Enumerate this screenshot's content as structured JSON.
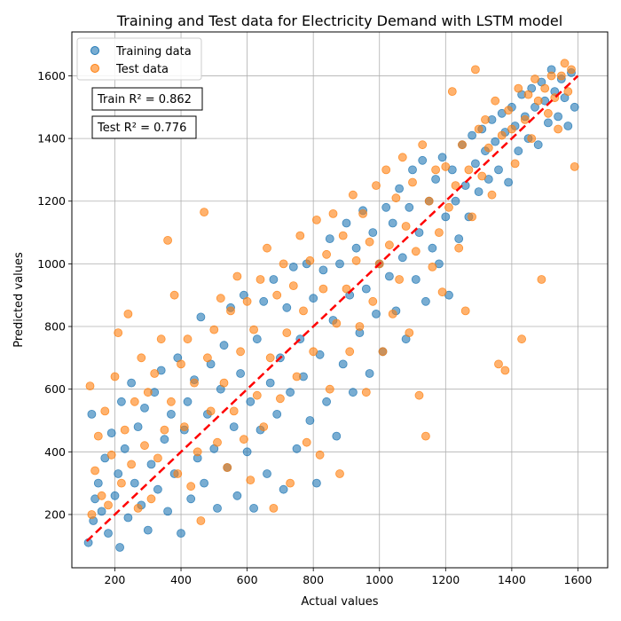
{
  "chart_data": {
    "type": "scatter",
    "title": "Training and Test data for Electricity Demand with LSTM model",
    "xlabel": "Actual values",
    "ylabel": "Predicted values",
    "xlim": [
      70,
      1690
    ],
    "ylim": [
      30,
      1740
    ],
    "xticks": [
      200,
      400,
      600,
      800,
      1000,
      1200,
      1400,
      1600
    ],
    "yticks": [
      200,
      400,
      600,
      800,
      1000,
      1200,
      1400,
      1600
    ],
    "grid": true,
    "legend_position": "top-left",
    "annotations": [
      "Train R² = 0.862",
      "Test R² = 0.776"
    ],
    "reference_line": {
      "style": "dashed",
      "color": "#ff0000",
      "from": [
        115,
        115
      ],
      "to": [
        1600,
        1600
      ]
    },
    "series": [
      {
        "name": "Training data",
        "color": "#1f77b4",
        "points": [
          [
            120,
            110
          ],
          [
            130,
            520
          ],
          [
            135,
            180
          ],
          [
            140,
            250
          ],
          [
            150,
            300
          ],
          [
            160,
            210
          ],
          [
            170,
            380
          ],
          [
            180,
            140
          ],
          [
            190,
            460
          ],
          [
            200,
            260
          ],
          [
            210,
            330
          ],
          [
            215,
            95
          ],
          [
            220,
            560
          ],
          [
            230,
            410
          ],
          [
            240,
            190
          ],
          [
            250,
            620
          ],
          [
            260,
            300
          ],
          [
            270,
            480
          ],
          [
            280,
            230
          ],
          [
            290,
            540
          ],
          [
            300,
            150
          ],
          [
            310,
            360
          ],
          [
            320,
            590
          ],
          [
            330,
            280
          ],
          [
            340,
            660
          ],
          [
            350,
            440
          ],
          [
            360,
            210
          ],
          [
            370,
            520
          ],
          [
            380,
            330
          ],
          [
            390,
            700
          ],
          [
            400,
            140
          ],
          [
            410,
            470
          ],
          [
            420,
            560
          ],
          [
            430,
            250
          ],
          [
            440,
            630
          ],
          [
            450,
            380
          ],
          [
            460,
            830
          ],
          [
            470,
            300
          ],
          [
            480,
            520
          ],
          [
            490,
            680
          ],
          [
            500,
            410
          ],
          [
            510,
            220
          ],
          [
            520,
            600
          ],
          [
            530,
            740
          ],
          [
            540,
            350
          ],
          [
            550,
            860
          ],
          [
            560,
            480
          ],
          [
            570,
            260
          ],
          [
            580,
            650
          ],
          [
            590,
            900
          ],
          [
            600,
            400
          ],
          [
            610,
            560
          ],
          [
            620,
            220
          ],
          [
            630,
            760
          ],
          [
            640,
            470
          ],
          [
            650,
            880
          ],
          [
            660,
            330
          ],
          [
            670,
            620
          ],
          [
            680,
            950
          ],
          [
            690,
            520
          ],
          [
            700,
            700
          ],
          [
            710,
            280
          ],
          [
            720,
            860
          ],
          [
            730,
            590
          ],
          [
            740,
            990
          ],
          [
            750,
            410
          ],
          [
            760,
            760
          ],
          [
            770,
            640
          ],
          [
            780,
            1000
          ],
          [
            790,
            500
          ],
          [
            800,
            890
          ],
          [
            810,
            300
          ],
          [
            820,
            710
          ],
          [
            830,
            980
          ],
          [
            840,
            560
          ],
          [
            850,
            1080
          ],
          [
            860,
            820
          ],
          [
            870,
            450
          ],
          [
            880,
            1000
          ],
          [
            890,
            680
          ],
          [
            900,
            1130
          ],
          [
            910,
            900
          ],
          [
            920,
            590
          ],
          [
            930,
            1050
          ],
          [
            940,
            780
          ],
          [
            950,
            1170
          ],
          [
            960,
            920
          ],
          [
            970,
            650
          ],
          [
            980,
            1100
          ],
          [
            990,
            840
          ],
          [
            1000,
            1000
          ],
          [
            1010,
            720
          ],
          [
            1020,
            1180
          ],
          [
            1030,
            960
          ],
          [
            1040,
            1130
          ],
          [
            1050,
            850
          ],
          [
            1060,
            1240
          ],
          [
            1070,
            1020
          ],
          [
            1080,
            760
          ],
          [
            1090,
            1180
          ],
          [
            1100,
            1300
          ],
          [
            1110,
            950
          ],
          [
            1120,
            1100
          ],
          [
            1130,
            1330
          ],
          [
            1140,
            880
          ],
          [
            1150,
            1200
          ],
          [
            1160,
            1050
          ],
          [
            1170,
            1270
          ],
          [
            1180,
            1000
          ],
          [
            1190,
            1340
          ],
          [
            1200,
            1150
          ],
          [
            1210,
            900
          ],
          [
            1220,
            1300
          ],
          [
            1230,
            1200
          ],
          [
            1240,
            1080
          ],
          [
            1250,
            1380
          ],
          [
            1260,
            1250
          ],
          [
            1270,
            1150
          ],
          [
            1280,
            1410
          ],
          [
            1290,
            1320
          ],
          [
            1300,
            1230
          ],
          [
            1310,
            1430
          ],
          [
            1320,
            1360
          ],
          [
            1330,
            1270
          ],
          [
            1340,
            1460
          ],
          [
            1350,
            1390
          ],
          [
            1360,
            1300
          ],
          [
            1370,
            1480
          ],
          [
            1380,
            1420
          ],
          [
            1390,
            1260
          ],
          [
            1400,
            1500
          ],
          [
            1410,
            1440
          ],
          [
            1420,
            1360
          ],
          [
            1430,
            1540
          ],
          [
            1440,
            1470
          ],
          [
            1450,
            1400
          ],
          [
            1460,
            1560
          ],
          [
            1470,
            1500
          ],
          [
            1480,
            1380
          ],
          [
            1490,
            1580
          ],
          [
            1500,
            1520
          ],
          [
            1510,
            1450
          ],
          [
            1520,
            1620
          ],
          [
            1530,
            1550
          ],
          [
            1540,
            1470
          ],
          [
            1550,
            1590
          ],
          [
            1560,
            1530
          ],
          [
            1570,
            1440
          ],
          [
            1580,
            1610
          ],
          [
            1590,
            1500
          ]
        ]
      },
      {
        "name": "Test data",
        "color": "#ff7f0e",
        "points": [
          [
            125,
            610
          ],
          [
            130,
            200
          ],
          [
            140,
            340
          ],
          [
            150,
            450
          ],
          [
            160,
            260
          ],
          [
            170,
            530
          ],
          [
            180,
            230
          ],
          [
            190,
            390
          ],
          [
            200,
            640
          ],
          [
            210,
            780
          ],
          [
            220,
            300
          ],
          [
            230,
            470
          ],
          [
            240,
            840
          ],
          [
            250,
            360
          ],
          [
            260,
            560
          ],
          [
            270,
            220
          ],
          [
            280,
            700
          ],
          [
            290,
            420
          ],
          [
            300,
            590
          ],
          [
            310,
            250
          ],
          [
            320,
            650
          ],
          [
            330,
            380
          ],
          [
            340,
            760
          ],
          [
            350,
            470
          ],
          [
            360,
            1075
          ],
          [
            370,
            560
          ],
          [
            380,
            900
          ],
          [
            390,
            330
          ],
          [
            400,
            680
          ],
          [
            410,
            480
          ],
          [
            420,
            760
          ],
          [
            430,
            290
          ],
          [
            440,
            620
          ],
          [
            450,
            400
          ],
          [
            460,
            180
          ],
          [
            470,
            1165
          ],
          [
            480,
            700
          ],
          [
            490,
            530
          ],
          [
            500,
            790
          ],
          [
            510,
            430
          ],
          [
            520,
            890
          ],
          [
            530,
            620
          ],
          [
            540,
            350
          ],
          [
            550,
            850
          ],
          [
            560,
            530
          ],
          [
            570,
            960
          ],
          [
            580,
            720
          ],
          [
            590,
            440
          ],
          [
            600,
            880
          ],
          [
            610,
            310
          ],
          [
            620,
            790
          ],
          [
            630,
            580
          ],
          [
            640,
            950
          ],
          [
            650,
            480
          ],
          [
            660,
            1050
          ],
          [
            670,
            700
          ],
          [
            680,
            220
          ],
          [
            690,
            900
          ],
          [
            700,
            570
          ],
          [
            710,
            1000
          ],
          [
            720,
            780
          ],
          [
            730,
            300
          ],
          [
            740,
            930
          ],
          [
            750,
            640
          ],
          [
            760,
            1090
          ],
          [
            770,
            850
          ],
          [
            780,
            430
          ],
          [
            790,
            1010
          ],
          [
            800,
            720
          ],
          [
            810,
            1140
          ],
          [
            820,
            390
          ],
          [
            830,
            920
          ],
          [
            840,
            1030
          ],
          [
            850,
            600
          ],
          [
            860,
            1160
          ],
          [
            870,
            810
          ],
          [
            880,
            330
          ],
          [
            890,
            1090
          ],
          [
            900,
            920
          ],
          [
            910,
            720
          ],
          [
            920,
            1220
          ],
          [
            930,
            1010
          ],
          [
            940,
            800
          ],
          [
            950,
            1160
          ],
          [
            960,
            590
          ],
          [
            970,
            1070
          ],
          [
            980,
            880
          ],
          [
            990,
            1250
          ],
          [
            1000,
            1000
          ],
          [
            1010,
            720
          ],
          [
            1020,
            1300
          ],
          [
            1030,
            1060
          ],
          [
            1040,
            840
          ],
          [
            1050,
            1210
          ],
          [
            1060,
            950
          ],
          [
            1070,
            1340
          ],
          [
            1080,
            1120
          ],
          [
            1090,
            780
          ],
          [
            1100,
            1260
          ],
          [
            1110,
            1040
          ],
          [
            1120,
            580
          ],
          [
            1130,
            1380
          ],
          [
            1140,
            450
          ],
          [
            1150,
            1200
          ],
          [
            1160,
            990
          ],
          [
            1170,
            1300
          ],
          [
            1180,
            1100
          ],
          [
            1190,
            910
          ],
          [
            1200,
            1310
          ],
          [
            1210,
            1180
          ],
          [
            1220,
            1550
          ],
          [
            1230,
            1250
          ],
          [
            1240,
            1050
          ],
          [
            1250,
            1380
          ],
          [
            1260,
            850
          ],
          [
            1270,
            1300
          ],
          [
            1280,
            1150
          ],
          [
            1290,
            1620
          ],
          [
            1300,
            1430
          ],
          [
            1310,
            1280
          ],
          [
            1320,
            1460
          ],
          [
            1330,
            1370
          ],
          [
            1340,
            1220
          ],
          [
            1350,
            1520
          ],
          [
            1360,
            680
          ],
          [
            1370,
            1410
          ],
          [
            1380,
            660
          ],
          [
            1390,
            1490
          ],
          [
            1400,
            1430
          ],
          [
            1410,
            1320
          ],
          [
            1420,
            1560
          ],
          [
            1430,
            760
          ],
          [
            1440,
            1460
          ],
          [
            1450,
            1540
          ],
          [
            1460,
            1400
          ],
          [
            1470,
            1590
          ],
          [
            1480,
            1520
          ],
          [
            1490,
            950
          ],
          [
            1500,
            1560
          ],
          [
            1510,
            1480
          ],
          [
            1520,
            1600
          ],
          [
            1530,
            1530
          ],
          [
            1540,
            1430
          ],
          [
            1550,
            1600
          ],
          [
            1560,
            1640
          ],
          [
            1570,
            1550
          ],
          [
            1580,
            1620
          ],
          [
            1590,
            1310
          ]
        ]
      }
    ]
  }
}
